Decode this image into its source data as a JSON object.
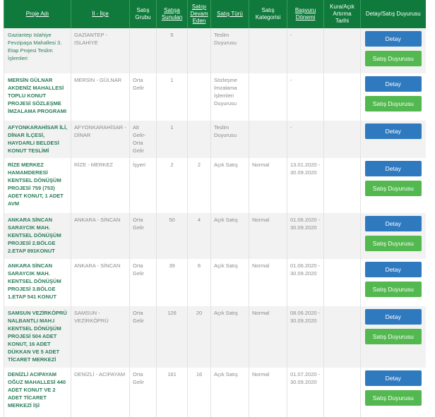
{
  "headers": {
    "proje_adi": "Proje Adı",
    "il_ilce": "İl - İlçe",
    "satis_grubu": "Satış Grubu",
    "satisa_sunulan": "Satışa Sunulan",
    "satisi_devam_eden": "Satışı Devam Eden",
    "satis_turu": "Satış Türü",
    "satis_kategorisi": "Satış Kategorisi",
    "basvuru_donemi": "Başvuru Dönemi",
    "kura_tarihi": "Kura/Açık Artırma Tarihi",
    "detay_duyurusu": "Detay/Satış Duyurusu"
  },
  "buttons": {
    "detay": "Detay",
    "satis_duyurusu": "Satış Duyurusu"
  },
  "colors": {
    "header_bg": "#0f7a3b",
    "detay_button": "#2f79bf",
    "satis_button": "#53b84f",
    "project_name": "#2a7d5a"
  },
  "rows": [
    {
      "name": "Gaziantep Islahiye Fevzipaşa Mahallesi 3. Etap Projesi Teslim İşlemleri",
      "il_ilce": "GAZİANTEP - ISLAHİYE",
      "grup": "",
      "sunulan": "5",
      "devam": "",
      "tur": "Teslim Duyurusu",
      "kategori": "",
      "basvuru": "-",
      "kura": "",
      "satis_duyurusu": true
    },
    {
      "name": "MERSİN GÜLNAR AKDENİZ MAHALLESİ TOPLU KONUT PROJESİ SÖZLEŞME İMZALAMA PROGRAMI",
      "il_ilce": "MERSİN - GÜLNAR",
      "grup": "Orta Gelir",
      "sunulan": "1",
      "devam": "",
      "tur": "Sözleşme İmzalama İşlemleri Duyurusu",
      "kategori": "",
      "basvuru": "-",
      "kura": "",
      "satis_duyurusu": true
    },
    {
      "name": "AFYONKARAHİSAR İLİ, DİNAR İLÇESİ, HAYDARLI BELDESİ KONUT TESLİMİ",
      "il_ilce": "AFYONKARAHİSAR - DİNAR",
      "grup": "Alt Gelir-Orta Gelir",
      "sunulan": "1",
      "devam": "",
      "tur": "Teslim Duyurusu",
      "kategori": "",
      "basvuru": "-",
      "kura": "",
      "satis_duyurusu": false
    },
    {
      "name": "RİZE MERKEZ HAMAMDERESİ KENTSEL DÖNÜŞÜM PROJESİ 759 (753) ADET KONUT, 1 ADET AVM",
      "il_ilce": "RİZE - MERKEZ",
      "grup": "İşyeri",
      "sunulan": "2",
      "devam": "2",
      "tur": "Açık Satış",
      "kategori": "Normal",
      "basvuru": "13.01.2020 - 30.09.2020",
      "kura": "",
      "satis_duyurusu": true
    },
    {
      "name": "ANKARA SİNCAN SARAYCIK MAH. KENTSEL DÖNÜŞÜM PROJESİ 2.BÖLGE 2.ETAP 891KONUT",
      "il_ilce": "ANKARA - SİNCAN",
      "grup": "Orta Gelir",
      "sunulan": "50",
      "devam": "4",
      "tur": "Açık Satış",
      "kategori": "Normal",
      "basvuru": "01.06.2020 - 30.09.2020",
      "kura": "",
      "satis_duyurusu": true
    },
    {
      "name": "ANKARA SİNCAN SARAYCIK MAH. KENTSEL DÖNÜŞÜM PROJESİ 3.BÖLGE 1.ETAP 541 KONUT",
      "il_ilce": "ANKARA - SİNCAN",
      "grup": "Orta Gelir",
      "sunulan": "39",
      "devam": "8",
      "tur": "Açık Satış",
      "kategori": "Normal",
      "basvuru": "01.06.2020 - 30.09.2020",
      "kura": "",
      "satis_duyurusu": true
    },
    {
      "name": "SAMSUN VEZİRKÖPRÜ NALBANTLI MAH.I KENTSEL DÖNÜŞÜM PROJESİ 504 ADET KONUT, 16 ADET DÜKKAN VE 5 ADET TİCARET MERKEZİ",
      "il_ilce": "SAMSUN - VEZİRKÖPRÜ",
      "grup": "Orta Gelir",
      "sunulan": "126",
      "devam": "20",
      "tur": "Açık Satış",
      "kategori": "Normal",
      "basvuru": "08.06.2020 - 30.09.2020",
      "kura": "",
      "satis_duyurusu": true
    },
    {
      "name": "DENİZLİ ACIPAYAM OĞUZ MAHALLESİ 440 ADET KONUT VE 2 ADET TİCARET MERKEZİ İŞİ",
      "il_ilce": "DENİZLİ - ACIPAYAM",
      "grup": "Orta Gelir",
      "sunulan": "161",
      "devam": "16",
      "tur": "Açık Satış",
      "kategori": "Normal",
      "basvuru": "01.07.2020 - 30.09.2020",
      "kura": "",
      "satis_duyurusu": true
    }
  ]
}
